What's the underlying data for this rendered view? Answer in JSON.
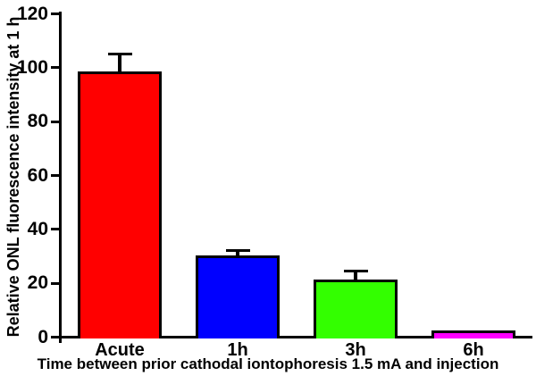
{
  "chart_data": {
    "type": "bar",
    "title": "",
    "categories": [
      "Acute",
      "1h",
      "3h",
      "6h"
    ],
    "values": [
      98,
      30,
      21,
      2
    ],
    "errors": [
      7,
      2,
      3.5,
      0
    ],
    "bar_colors": [
      "#FF0000",
      "#0000FF",
      "#33FF00",
      "#FF00FF"
    ],
    "xlabel": "Time between prior cathodal iontophoresis 1.5 mA and injection",
    "ylabel": "Relative ONL fluorescence intensity at 1 h",
    "ylim": [
      0,
      120
    ],
    "yticks": [
      0,
      20,
      40,
      60,
      80,
      100,
      120
    ],
    "grid": false,
    "legend": false,
    "error_bar_direction": "plus",
    "axis_color": "#000000",
    "background_color": "#FFFFFF"
  }
}
